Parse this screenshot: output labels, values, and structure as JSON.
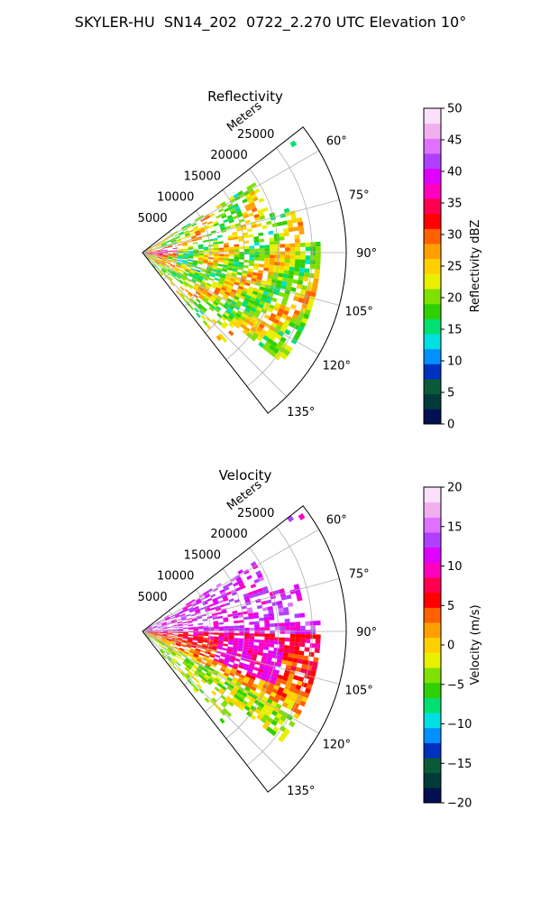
{
  "title": "SKYLER-HU  SN14_202  0722_2.270 UTC Elevation 10°",
  "chart_data": [
    {
      "type": "heatmap",
      "title": "Reflectivity",
      "radial_label": "Meters",
      "radial_ticks": [
        "5000",
        "10000",
        "15000",
        "20000",
        "25000"
      ],
      "radial_tick_values": [
        5000,
        10000,
        15000,
        20000,
        25000
      ],
      "azimuth_ticks": [
        "60°",
        "75°",
        "90°",
        "105°",
        "120°",
        "135°"
      ],
      "azimuth_tick_values": [
        60,
        75,
        90,
        105,
        120,
        135
      ],
      "azimuth_range": [
        52,
        142
      ],
      "range_max": 30000,
      "grid": true,
      "colorbar": {
        "label": "Reflectivity dBZ",
        "ticks": [
          "0",
          "5",
          "10",
          "15",
          "20",
          "25",
          "30",
          "35",
          "40",
          "45",
          "50"
        ],
        "range": [
          0,
          50
        ],
        "colors": [
          "#001050",
          "#003a3a",
          "#0a5a3a",
          "#0030c0",
          "#0090ff",
          "#00e0e0",
          "#00e070",
          "#30d000",
          "#80e000",
          "#e8f000",
          "#ffd000",
          "#ffa000",
          "#ff6000",
          "#ff0000",
          "#ff0050",
          "#ff00c0",
          "#e000ff",
          "#b040ff",
          "#e070ff",
          "#f0b0f0",
          "#fbe0fb"
        ]
      }
    },
    {
      "type": "heatmap",
      "title": "Velocity",
      "radial_label": "Meters",
      "radial_ticks": [
        "5000",
        "10000",
        "15000",
        "20000",
        "25000"
      ],
      "radial_tick_values": [
        5000,
        10000,
        15000,
        20000,
        25000
      ],
      "azimuth_ticks": [
        "60°",
        "75°",
        "90°",
        "105°",
        "120°",
        "135°"
      ],
      "azimuth_tick_values": [
        60,
        75,
        90,
        105,
        120,
        135
      ],
      "azimuth_range": [
        52,
        142
      ],
      "range_max": 30000,
      "grid": true,
      "colorbar": {
        "label": "Velocity (m/s)",
        "ticks": [
          "−20",
          "−15",
          "−10",
          "−5",
          "0",
          "5",
          "10",
          "15",
          "20"
        ],
        "range": [
          -20,
          20
        ],
        "colors": [
          "#001050",
          "#003a3a",
          "#0a5a3a",
          "#0030c0",
          "#0090ff",
          "#00e0e0",
          "#00e070",
          "#30d000",
          "#80e000",
          "#e8f000",
          "#ffd000",
          "#ffa000",
          "#ff6000",
          "#ff0000",
          "#ff0050",
          "#ff00c0",
          "#e000ff",
          "#b040ff",
          "#e070ff",
          "#f0b0f0",
          "#fbe0fb"
        ]
      }
    }
  ]
}
